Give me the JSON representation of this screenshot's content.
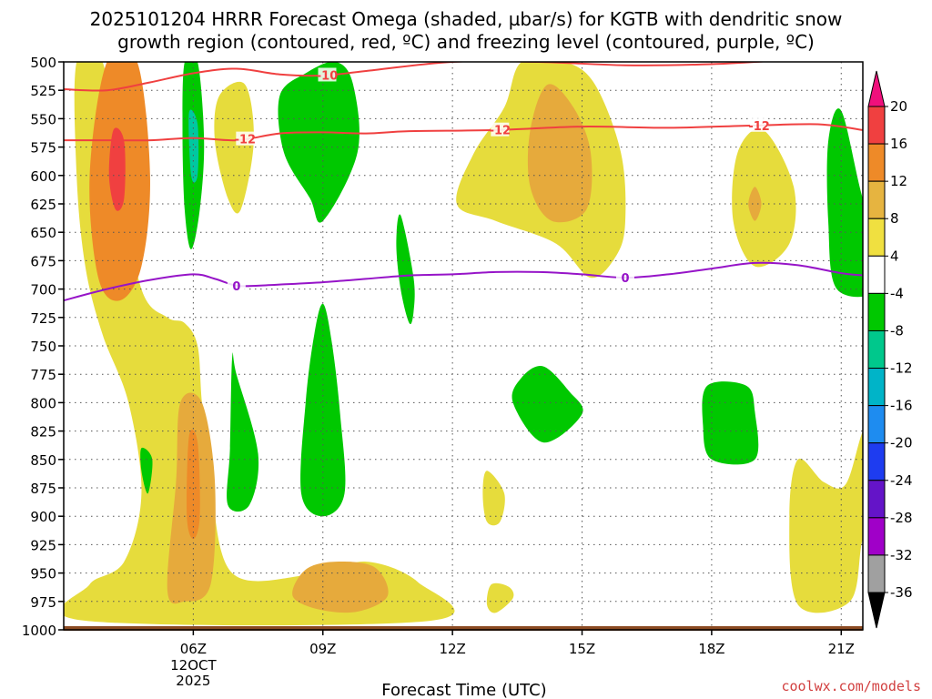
{
  "chart_data": {
    "type": "contour",
    "title_line1": "2025101204 HRRR Forecast Omega (shaded, µbar/s) for KGTB with dendritic snow",
    "title_line2": "growth region (contoured, red, ºC) and freezing level (contoured, purple, ºC)",
    "xlabel": "Forecast Time (UTC)",
    "x_range_hours": [
      3.0,
      21.5
    ],
    "x_ticks": [
      {
        "hour": 6,
        "label": "06Z",
        "sub1": "12OCT",
        "sub2": "2025"
      },
      {
        "hour": 9,
        "label": "09Z",
        "sub1": "",
        "sub2": ""
      },
      {
        "hour": 12,
        "label": "12Z",
        "sub1": "",
        "sub2": ""
      },
      {
        "hour": 15,
        "label": "15Z",
        "sub1": "",
        "sub2": ""
      },
      {
        "hour": 18,
        "label": "18Z",
        "sub1": "",
        "sub2": ""
      },
      {
        "hour": 21,
        "label": "21Z",
        "sub1": "",
        "sub2": ""
      }
    ],
    "y_range_hpa": [
      500,
      1000
    ],
    "y_ticks": [
      "500",
      "525",
      "550",
      "575",
      "600",
      "625",
      "650",
      "675",
      "700",
      "725",
      "750",
      "775",
      "800",
      "825",
      "850",
      "875",
      "900",
      "925",
      "950",
      "975",
      "1000"
    ],
    "colorbar": {
      "labels": [
        "20",
        "16",
        "12",
        "8",
        "4",
        "-4",
        "-8",
        "-12",
        "-16",
        "-20",
        "-24",
        "-28",
        "-32",
        "-36"
      ],
      "colors": [
        "#f0107c",
        "#f04040",
        "#ee8a28",
        "#e6b440",
        "#f0e040",
        "#ffffff",
        "#00c800",
        "#00c88c",
        "#00b4c8",
        "#1e8cf0",
        "#1e3cf0",
        "#6414c8",
        "#a000c8",
        "#a0a0a0",
        "#000000"
      ]
    },
    "omega_regions": [
      {
        "color": "#e6dc3c",
        "label": "4-8",
        "hours": [
          [
            3.3,
            500
          ],
          [
            3.9,
            500
          ],
          [
            4.3,
            600
          ],
          [
            4.8,
            700
          ],
          [
            5.4,
            725
          ],
          [
            5.8,
            730
          ],
          [
            6.1,
            750
          ],
          [
            6.2,
            800
          ],
          [
            6.4,
            870
          ],
          [
            6.9,
            950
          ],
          [
            8.6,
            952
          ],
          [
            10.0,
            940
          ],
          [
            11.2,
            958
          ],
          [
            11.5,
            992
          ],
          [
            3.5,
            992
          ],
          [
            3.6,
            960
          ],
          [
            4.4,
            940
          ],
          [
            4.8,
            880
          ],
          [
            4.5,
            800
          ],
          [
            3.9,
            740
          ],
          [
            3.5,
            680
          ],
          [
            3.3,
            600
          ]
        ]
      },
      {
        "color": "#e6aa3c",
        "label": "8-12",
        "hours": [
          [
            4.0,
            520
          ],
          [
            4.6,
            520
          ],
          [
            4.6,
            620
          ],
          [
            4.5,
            680
          ],
          [
            4.1,
            690
          ],
          [
            3.8,
            620
          ]
        ]
      },
      {
        "color": "#ee8a28",
        "label": "12-16",
        "hours": [
          [
            4.0,
            500
          ],
          [
            4.7,
            500
          ],
          [
            5.0,
            600
          ],
          [
            4.8,
            680
          ],
          [
            4.3,
            710
          ],
          [
            3.8,
            690
          ],
          [
            3.6,
            600
          ]
        ]
      },
      {
        "color": "#f04040",
        "label": "16-20",
        "hours": [
          [
            4.15,
            560
          ],
          [
            4.4,
            570
          ],
          [
            4.4,
            620
          ],
          [
            4.2,
            630
          ],
          [
            4.05,
            600
          ]
        ]
      },
      {
        "color": "#e6aa3c",
        "label": "8-12",
        "hours": [
          [
            5.7,
            800
          ],
          [
            6.2,
            800
          ],
          [
            6.5,
            870
          ],
          [
            6.4,
            960
          ],
          [
            5.8,
            975
          ],
          [
            5.4,
            965
          ],
          [
            5.6,
            870
          ]
        ]
      },
      {
        "color": "#ee8a28",
        "label": "12-16",
        "hours": [
          [
            5.9,
            830
          ],
          [
            6.1,
            835
          ],
          [
            6.15,
            900
          ],
          [
            6.0,
            920
          ],
          [
            5.85,
            900
          ]
        ]
      },
      {
        "color": "#e6aa3c",
        "label": "8-12",
        "hours": [
          [
            8.6,
            947
          ],
          [
            9.3,
            940
          ],
          [
            10.2,
            945
          ],
          [
            10.5,
            970
          ],
          [
            9.8,
            984
          ],
          [
            8.9,
            982
          ],
          [
            8.3,
            970
          ]
        ]
      },
      {
        "color": "#e6dc3c",
        "label": "4-8",
        "hours": [
          [
            6.6,
            530
          ],
          [
            7.2,
            520
          ],
          [
            7.4,
            570
          ],
          [
            7.1,
            630
          ],
          [
            6.8,
            620
          ],
          [
            6.5,
            570
          ]
        ]
      },
      {
        "color": "#e6dc3c",
        "label": "4-8",
        "hours": [
          [
            13.6,
            500
          ],
          [
            14.6,
            500
          ],
          [
            15.3,
            520
          ],
          [
            15.9,
            580
          ],
          [
            16.0,
            640
          ],
          [
            15.8,
            670
          ],
          [
            15.2,
            690
          ],
          [
            14.4,
            660
          ],
          [
            13.0,
            640
          ],
          [
            12.1,
            625
          ],
          [
            12.5,
            580
          ],
          [
            13.2,
            540
          ]
        ]
      },
      {
        "color": "#e6aa3c",
        "label": "8-12",
        "hours": [
          [
            14.2,
            520
          ],
          [
            14.8,
            540
          ],
          [
            15.2,
            580
          ],
          [
            15.1,
            630
          ],
          [
            14.3,
            640
          ],
          [
            13.8,
            610
          ],
          [
            13.8,
            560
          ]
        ]
      },
      {
        "color": "#e6dc3c",
        "label": "4-8",
        "hours": [
          [
            18.6,
            580
          ],
          [
            19.2,
            560
          ],
          [
            19.9,
            610
          ],
          [
            19.8,
            660
          ],
          [
            19.0,
            680
          ],
          [
            18.5,
            640
          ]
        ]
      },
      {
        "color": "#e6aa3c",
        "label": "8-12",
        "hours": [
          [
            19.0,
            610
          ],
          [
            19.15,
            625
          ],
          [
            19.0,
            640
          ],
          [
            18.85,
            625
          ]
        ]
      },
      {
        "color": "#e6dc3c",
        "label": "4-8",
        "hours": [
          [
            12.8,
            860
          ],
          [
            13.2,
            880
          ],
          [
            13.1,
            905
          ],
          [
            12.8,
            905
          ],
          [
            12.7,
            880
          ]
        ]
      },
      {
        "color": "#e6dc3c",
        "label": "4-8",
        "hours": [
          [
            12.9,
            960
          ],
          [
            13.3,
            962
          ],
          [
            13.4,
            972
          ],
          [
            13.0,
            985
          ],
          [
            12.8,
            978
          ]
        ]
      },
      {
        "color": "#e6dc3c",
        "label": "4-8",
        "hours": [
          [
            20.0,
            850
          ],
          [
            20.6,
            870
          ],
          [
            21.1,
            872
          ],
          [
            21.5,
            825
          ],
          [
            21.9,
            800
          ],
          [
            21.9,
            900
          ],
          [
            21.5,
            920
          ],
          [
            21.2,
            975
          ],
          [
            20.0,
            978
          ],
          [
            19.8,
            900
          ]
        ]
      },
      {
        "color": "#00c800",
        "label": "-4 to -8",
        "hours": [
          [
            8.0,
            530
          ],
          [
            8.6,
            510
          ],
          [
            9.3,
            500
          ],
          [
            9.7,
            520
          ],
          [
            9.8,
            580
          ],
          [
            9.0,
            640
          ],
          [
            8.7,
            620
          ],
          [
            8.1,
            580
          ]
        ]
      },
      {
        "color": "#00c800",
        "label": "-4 to -8",
        "hours": [
          [
            5.8,
            500
          ],
          [
            6.1,
            500
          ],
          [
            6.25,
            570
          ],
          [
            6.15,
            630
          ],
          [
            5.95,
            665
          ],
          [
            5.8,
            630
          ],
          [
            5.75,
            560
          ]
        ]
      },
      {
        "color": "#00c8a0",
        "label": "-8 to -12",
        "hours": [
          [
            5.9,
            545
          ],
          [
            6.1,
            555
          ],
          [
            6.1,
            600
          ],
          [
            5.95,
            600
          ]
        ]
      },
      {
        "color": "#00c800",
        "label": "-4 to -8",
        "hours": [
          [
            10.8,
            635
          ],
          [
            11.1,
            690
          ],
          [
            11.1,
            720
          ],
          [
            11.0,
            730
          ],
          [
            10.8,
            700
          ],
          [
            10.7,
            660
          ]
        ]
      },
      {
        "color": "#00c800",
        "label": "-4 to -8",
        "hours": [
          [
            8.8,
            740
          ],
          [
            9.0,
            713
          ],
          [
            9.2,
            745
          ],
          [
            9.4,
            810
          ],
          [
            9.5,
            880
          ],
          [
            9.0,
            900
          ],
          [
            8.5,
            880
          ],
          [
            8.6,
            800
          ]
        ]
      },
      {
        "color": "#00c800",
        "label": "-4 to -8",
        "hours": [
          [
            6.9,
            760
          ],
          [
            7.0,
            775
          ],
          [
            7.5,
            845
          ],
          [
            7.3,
            890
          ],
          [
            6.8,
            890
          ],
          [
            6.85,
            840
          ]
        ]
      },
      {
        "color": "#00c800",
        "label": "-4 to -8",
        "hours": [
          [
            4.8,
            840
          ],
          [
            5.05,
            850
          ],
          [
            4.95,
            880
          ],
          [
            4.8,
            860
          ]
        ]
      },
      {
        "color": "#00c800",
        "label": "-4 to -8",
        "hours": [
          [
            13.6,
            778
          ],
          [
            14.1,
            768
          ],
          [
            14.7,
            790
          ],
          [
            15.0,
            810
          ],
          [
            14.1,
            835
          ],
          [
            13.4,
            800
          ]
        ]
      },
      {
        "color": "#00c800",
        "label": "-4 to -8",
        "hours": [
          [
            17.9,
            785
          ],
          [
            18.8,
            785
          ],
          [
            19.0,
            808
          ],
          [
            19.0,
            850
          ],
          [
            18.0,
            850
          ],
          [
            17.8,
            820
          ]
        ]
      },
      {
        "color": "#00c800",
        "label": "-4 to -8",
        "hours": [
          [
            20.7,
            570
          ],
          [
            21.0,
            543
          ],
          [
            21.5,
            620
          ],
          [
            21.9,
            650
          ],
          [
            21.9,
            700
          ],
          [
            20.9,
            700
          ],
          [
            20.7,
            640
          ]
        ]
      }
    ],
    "contours": [
      {
        "name": "-10 C isotherm",
        "color": "#f04040",
        "label": "-10",
        "label_hour": 9.1,
        "hours": [
          [
            3.0,
            524
          ],
          [
            4.0,
            525
          ],
          [
            5.0,
            518
          ],
          [
            6.0,
            510
          ],
          [
            7.0,
            506
          ],
          [
            8.0,
            511
          ],
          [
            9.0,
            512
          ],
          [
            10.0,
            508
          ],
          [
            12.0,
            500
          ],
          [
            14.0,
            500
          ],
          [
            16.0,
            503
          ],
          [
            18.0,
            502
          ],
          [
            20.0,
            498
          ],
          [
            21.5,
            497
          ]
        ]
      },
      {
        "name": "-12 C isotherm",
        "color": "#f04040",
        "label": "-12",
        "label_hour": 7.2,
        "hours": [
          [
            3.0,
            569
          ],
          [
            4.0,
            569
          ],
          [
            5.0,
            569
          ],
          [
            6.0,
            567
          ],
          [
            7.0,
            569
          ],
          [
            8.0,
            563
          ],
          [
            9.0,
            562
          ],
          [
            10.0,
            563
          ],
          [
            11.0,
            561
          ],
          [
            13.0,
            560
          ],
          [
            15.0,
            557
          ],
          [
            17.0,
            558
          ],
          [
            19.0,
            556
          ],
          [
            20.5,
            555
          ],
          [
            21.5,
            560
          ]
        ]
      },
      {
        "name": "freezing level",
        "color": "#9614c8",
        "label": "0",
        "label_hour": 7.2,
        "hours": [
          [
            3.0,
            710
          ],
          [
            4.0,
            700
          ],
          [
            5.0,
            692
          ],
          [
            6.0,
            687
          ],
          [
            6.5,
            691
          ],
          [
            7.0,
            697
          ],
          [
            7.5,
            697
          ],
          [
            8.0,
            696
          ],
          [
            9.0,
            694
          ],
          [
            10.0,
            691
          ],
          [
            11.0,
            688
          ],
          [
            12.0,
            687
          ],
          [
            13.0,
            685
          ],
          [
            14.0,
            685
          ],
          [
            15.0,
            687
          ],
          [
            16.0,
            690
          ],
          [
            17.0,
            687
          ],
          [
            18.0,
            682
          ],
          [
            19.0,
            677
          ],
          [
            20.0,
            679
          ],
          [
            21.0,
            686
          ],
          [
            21.5,
            688
          ]
        ]
      }
    ]
  },
  "credit": "coolwx.com/models"
}
